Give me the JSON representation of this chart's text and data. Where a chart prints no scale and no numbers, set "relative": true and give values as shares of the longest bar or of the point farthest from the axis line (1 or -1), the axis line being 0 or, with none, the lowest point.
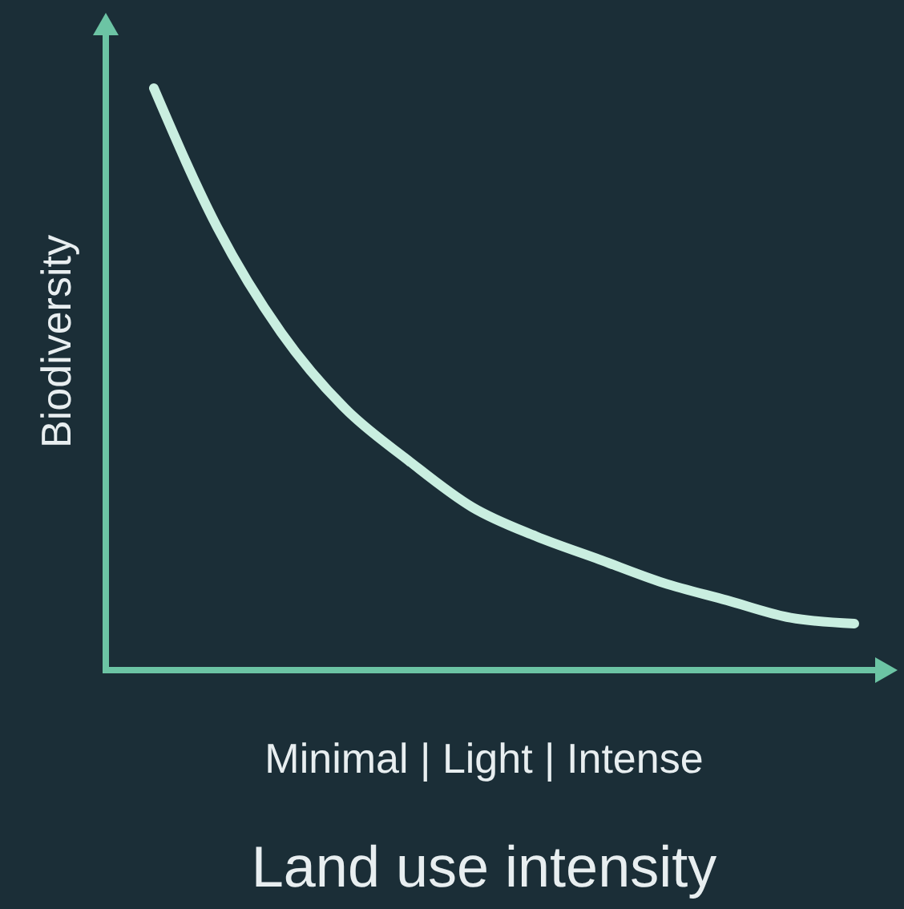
{
  "chart_data": {
    "type": "line",
    "relative": true,
    "xlabel": "Land use intensity",
    "ylabel": "Biodiversity",
    "annotations": [
      "Minimal | Light | Intense"
    ],
    "categories": [
      null,
      null,
      null,
      null,
      null,
      null,
      null,
      null,
      null,
      null,
      null,
      null
    ],
    "series": [
      {
        "color": "#c9eee0",
        "values": [
          1,
          0.76,
          0.58,
          0.45,
          0.36,
          0.28,
          0.23,
          0.19,
          0.15,
          0.12,
          0.09,
          0.08
        ]
      }
    ],
    "marker": "none",
    "line_style": "solid",
    "grid": false
  }
}
